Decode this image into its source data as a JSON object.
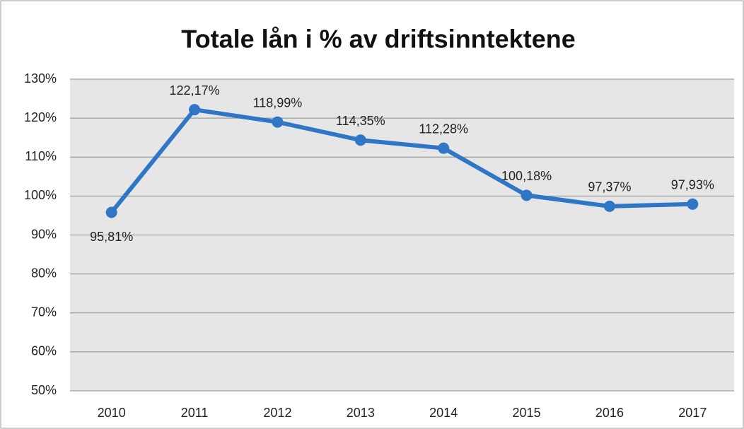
{
  "chart_data": {
    "type": "line",
    "title": "Totale lån i % av driftsinntektene",
    "categories": [
      "2010",
      "2011",
      "2012",
      "2013",
      "2014",
      "2015",
      "2016",
      "2017"
    ],
    "series": [
      {
        "name": "Totale lån i % av driftsinntektene",
        "color": "#2f77c6",
        "values": [
          95.81,
          122.17,
          118.99,
          114.35,
          112.28,
          100.18,
          97.37,
          97.93
        ],
        "value_labels": [
          "95,81%",
          "122,17%",
          "118,99%",
          "114,35%",
          "112,28%",
          "100,18%",
          "97,37%",
          "97,93%"
        ]
      }
    ],
    "ylim": [
      50,
      130
    ],
    "yticks": [
      {
        "value": 50,
        "label": "50%"
      },
      {
        "value": 60,
        "label": "60%"
      },
      {
        "value": 70,
        "label": "70%"
      },
      {
        "value": 80,
        "label": "80%"
      },
      {
        "value": 90,
        "label": "90%"
      },
      {
        "value": 100,
        "label": "100%"
      },
      {
        "value": 110,
        "label": "110%"
      },
      {
        "value": 120,
        "label": "120%"
      },
      {
        "value": 130,
        "label": "130%"
      }
    ],
    "grid": true
  }
}
